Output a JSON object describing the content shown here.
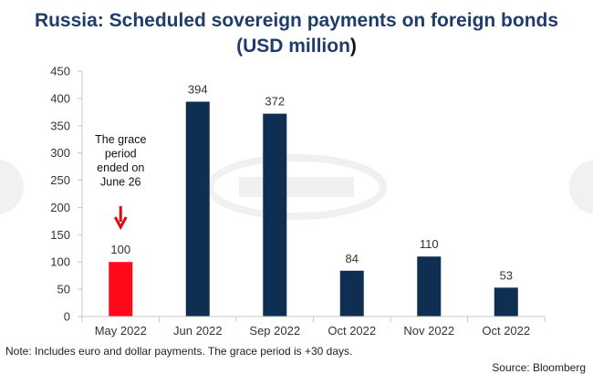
{
  "title_line1": "Russia: Scheduled sovereign payments on foreign bonds",
  "title_line2": "(USD million",
  "title_paren_close": ")",
  "note": "Note: Includes euro and dollar payments. The grace period is +30 days.",
  "source": "Source: Bloomberg",
  "annotation": {
    "lines": [
      "The grace",
      "period",
      "ended on",
      "June 26"
    ],
    "arrow_color": "#e30613"
  },
  "colors": {
    "highlight_bar": "#ff0a1a",
    "bar": "#0f2f52",
    "axis": "#c8c8c8",
    "text": "#333333"
  },
  "chart_data": {
    "type": "bar",
    "categories": [
      "May 2022",
      "Jun 2022",
      "Sep 2022",
      "Oct 2022",
      "Nov 2022",
      "Oct 2022"
    ],
    "values": [
      100,
      394,
      372,
      84,
      110,
      53
    ],
    "highlight_index": 0,
    "yticks": [
      0,
      50,
      100,
      150,
      200,
      250,
      300,
      350,
      400,
      450
    ],
    "ylim": [
      0,
      450
    ],
    "xlabel": "",
    "ylabel": "",
    "grid": false
  }
}
